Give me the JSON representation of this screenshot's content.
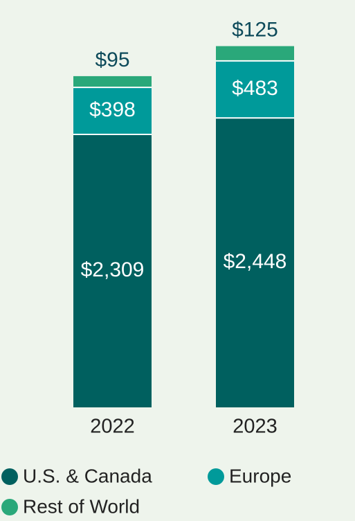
{
  "chart_data": {
    "type": "stacked_bar",
    "categories": [
      "2022",
      "2023"
    ],
    "series": [
      {
        "name": "U.S. & Canada",
        "color": "#00605f",
        "values": [
          2309,
          2448
        ],
        "value_labels": [
          "$2,309",
          "$2,448"
        ]
      },
      {
        "name": "Europe",
        "color": "#009a9a",
        "values": [
          398,
          483
        ],
        "value_labels": [
          "$398",
          "$483"
        ]
      },
      {
        "name": "Rest of World",
        "color": "#2aa87a",
        "values": [
          95,
          125
        ],
        "value_labels": [
          "$95",
          "$125"
        ]
      }
    ],
    "ylim": [
      0,
      3200
    ]
  }
}
